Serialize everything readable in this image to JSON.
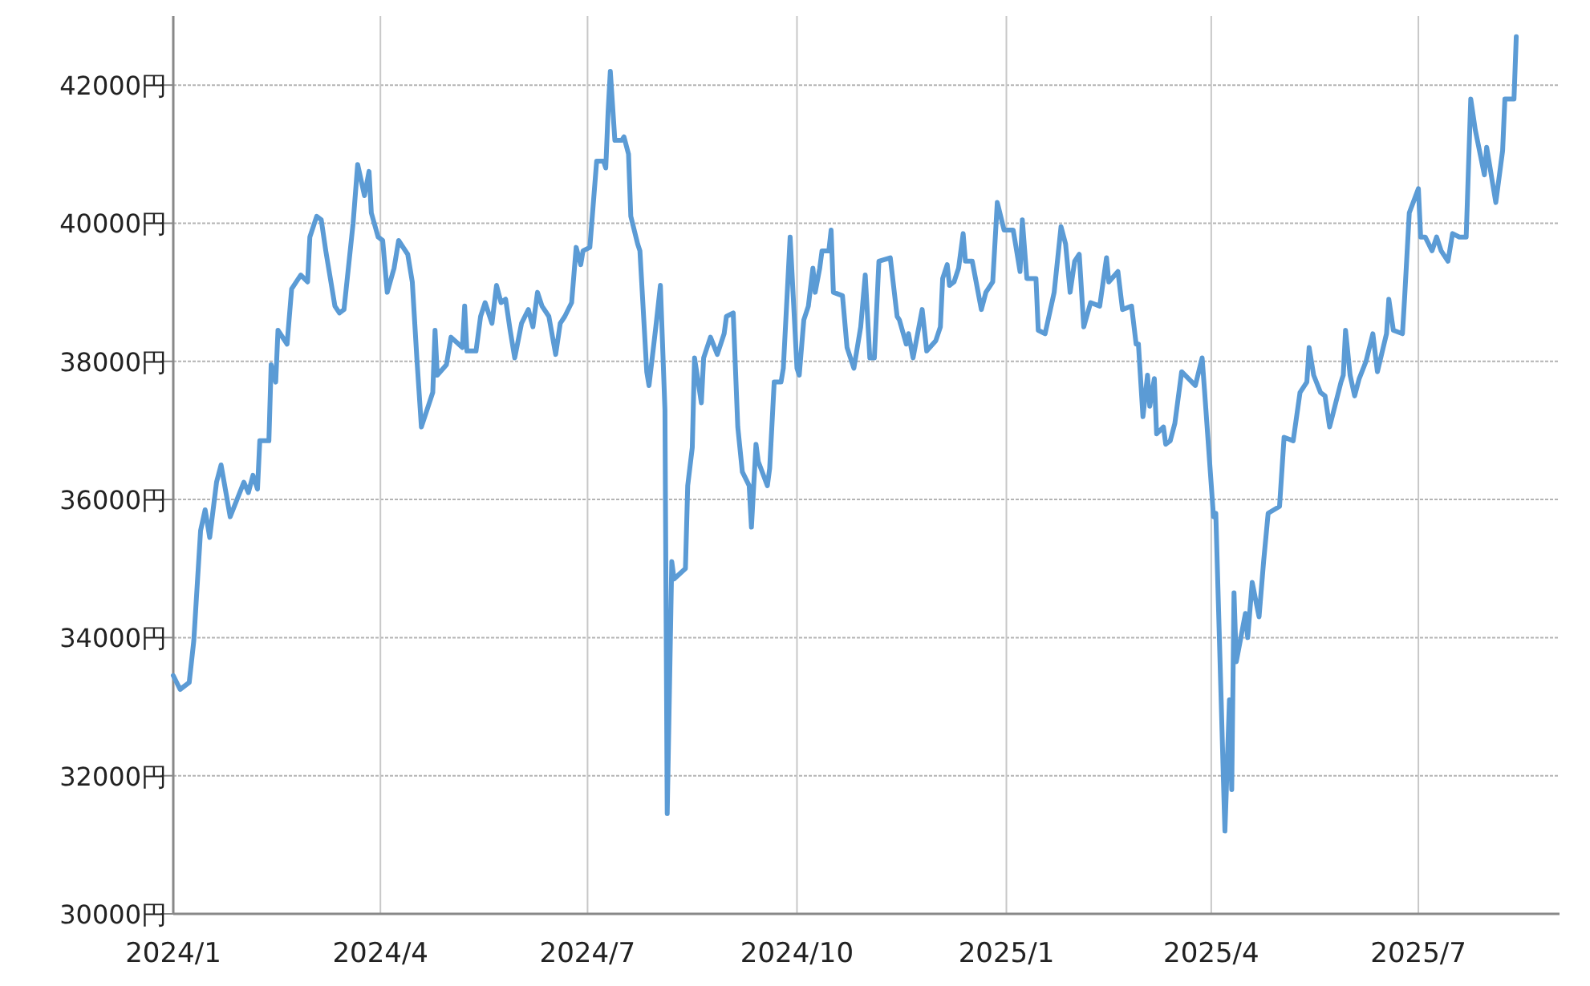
{
  "chart_data": {
    "type": "line",
    "grid": true,
    "xlim": [
      "2024-01-01",
      "2025-09-01"
    ],
    "xticks": [
      {
        "value": "2024-01-01",
        "label": "2024/1"
      },
      {
        "value": "2024-04-01",
        "label": "2024/4"
      },
      {
        "value": "2024-07-01",
        "label": "2024/7"
      },
      {
        "value": "2024-10-01",
        "label": "2024/10"
      },
      {
        "value": "2025-01-01",
        "label": "2025/1"
      },
      {
        "value": "2025-04-01",
        "label": "2025/4"
      },
      {
        "value": "2025-07-01",
        "label": "2025/7"
      }
    ],
    "ylim": [
      30000,
      43000
    ],
    "yticks": [
      {
        "value": 30000,
        "label": "30000円"
      },
      {
        "value": 32000,
        "label": "32000円"
      },
      {
        "value": 34000,
        "label": "34000円"
      },
      {
        "value": 36000,
        "label": "36000円"
      },
      {
        "value": 38000,
        "label": "38000円"
      },
      {
        "value": 40000,
        "label": "40000円"
      },
      {
        "value": 42000,
        "label": "42000円"
      }
    ],
    "x": [
      "2024-01-01",
      "2024-01-04",
      "2024-01-08",
      "2024-01-10",
      "2024-01-13",
      "2024-01-15",
      "2024-01-17",
      "2024-01-20",
      "2024-01-22",
      "2024-01-26",
      "2024-02-01",
      "2024-02-03",
      "2024-02-05",
      "2024-02-07",
      "2024-02-08",
      "2024-02-12",
      "2024-02-13",
      "2024-02-15",
      "2024-02-16",
      "2024-02-20",
      "2024-02-22",
      "2024-02-26",
      "2024-02-29",
      "2024-03-01",
      "2024-03-04",
      "2024-03-06",
      "2024-03-08",
      "2024-03-12",
      "2024-03-14",
      "2024-03-16",
      "2024-03-20",
      "2024-03-22",
      "2024-03-25",
      "2024-03-27",
      "2024-03-28",
      "2024-03-31",
      "2024-04-02",
      "2024-04-04",
      "2024-04-07",
      "2024-04-09",
      "2024-04-13",
      "2024-04-15",
      "2024-04-17",
      "2024-04-19",
      "2024-04-24",
      "2024-04-25",
      "2024-04-26",
      "2024-04-30",
      "2024-05-02",
      "2024-05-07",
      "2024-05-08",
      "2024-05-09",
      "2024-05-13",
      "2024-05-15",
      "2024-05-17",
      "2024-05-20",
      "2024-05-22",
      "2024-05-24",
      "2024-05-26",
      "2024-05-28",
      "2024-05-30",
      "2024-06-02",
      "2024-06-05",
      "2024-06-07",
      "2024-06-09",
      "2024-06-11",
      "2024-06-14",
      "2024-06-17",
      "2024-06-19",
      "2024-06-21",
      "2024-06-24",
      "2024-06-26",
      "2024-06-28",
      "2024-06-29",
      "2024-07-02",
      "2024-07-05",
      "2024-07-08",
      "2024-07-09",
      "2024-07-10",
      "2024-07-11",
      "2024-07-13",
      "2024-07-16",
      "2024-07-17",
      "2024-07-19",
      "2024-07-20",
      "2024-07-23",
      "2024-07-24",
      "2024-07-27",
      "2024-07-28",
      "2024-07-31",
      "2024-08-02",
      "2024-08-04",
      "2024-08-05",
      "2024-08-07",
      "2024-08-08",
      "2024-08-13",
      "2024-08-14",
      "2024-08-16",
      "2024-08-17",
      "2024-08-20",
      "2024-08-21",
      "2024-08-24",
      "2024-08-27",
      "2024-08-30",
      "2024-08-31",
      "2024-09-03",
      "2024-09-05",
      "2024-09-07",
      "2024-09-10",
      "2024-09-11",
      "2024-09-13",
      "2024-09-14",
      "2024-09-18",
      "2024-09-19",
      "2024-09-21",
      "2024-09-24",
      "2024-09-25",
      "2024-09-28",
      "2024-10-01",
      "2024-10-02",
      "2024-10-04",
      "2024-10-06",
      "2024-10-08",
      "2024-10-09",
      "2024-10-11",
      "2024-10-12",
      "2024-10-15",
      "2024-10-16",
      "2024-10-17",
      "2024-10-21",
      "2024-10-23",
      "2024-10-26",
      "2024-10-29",
      "2024-10-31",
      "2024-11-02",
      "2024-11-04",
      "2024-11-06",
      "2024-11-11",
      "2024-11-14",
      "2024-11-15",
      "2024-11-18",
      "2024-11-19",
      "2024-11-21",
      "2024-11-25",
      "2024-11-27",
      "2024-12-01",
      "2024-12-03",
      "2024-12-04",
      "2024-12-06",
      "2024-12-07",
      "2024-12-09",
      "2024-12-11",
      "2024-12-13",
      "2024-12-14",
      "2024-12-17",
      "2024-12-21",
      "2024-12-23",
      "2024-12-26",
      "2024-12-28",
      "2024-12-31",
      "2025-01-04",
      "2025-01-07",
      "2025-01-08",
      "2025-01-10",
      "2025-01-14",
      "2025-01-15",
      "2025-01-18",
      "2025-01-22",
      "2025-01-25",
      "2025-01-27",
      "2025-01-29",
      "2025-01-31",
      "2025-02-02",
      "2025-02-04",
      "2025-02-07",
      "2025-02-11",
      "2025-02-14",
      "2025-02-15",
      "2025-02-19",
      "2025-02-21",
      "2025-02-25",
      "2025-02-27",
      "2025-02-28",
      "2025-03-02",
      "2025-03-04",
      "2025-03-05",
      "2025-03-07",
      "2025-03-08",
      "2025-03-11",
      "2025-03-12",
      "2025-03-14",
      "2025-03-16",
      "2025-03-19",
      "2025-03-25",
      "2025-03-28",
      "2025-03-29",
      "2025-04-02",
      "2025-04-03",
      "2025-04-07",
      "2025-04-09",
      "2025-04-10",
      "2025-04-11",
      "2025-04-12",
      "2025-04-14",
      "2025-04-16",
      "2025-04-17",
      "2025-04-19",
      "2025-04-22",
      "2025-04-24",
      "2025-04-26",
      "2025-05-01",
      "2025-05-03",
      "2025-05-07",
      "2025-05-10",
      "2025-05-13",
      "2025-05-14",
      "2025-05-16",
      "2025-05-19",
      "2025-05-21",
      "2025-05-23",
      "2025-05-28",
      "2025-05-29",
      "2025-05-30",
      "2025-06-01",
      "2025-06-03",
      "2025-06-05",
      "2025-06-08",
      "2025-06-11",
      "2025-06-13",
      "2025-06-17",
      "2025-06-18",
      "2025-06-20",
      "2025-06-24",
      "2025-06-25",
      "2025-06-27",
      "2025-07-01",
      "2025-07-02",
      "2025-07-04",
      "2025-07-07",
      "2025-07-09",
      "2025-07-11",
      "2025-07-14",
      "2025-07-16",
      "2025-07-19",
      "2025-07-22",
      "2025-07-24",
      "2025-07-26",
      "2025-07-30",
      "2025-07-31",
      "2025-08-04",
      "2025-08-07",
      "2025-08-08",
      "2025-08-12",
      "2025-08-13"
    ],
    "series": [
      {
        "color": "#5b9bd5",
        "values": [
          33450,
          33250,
          33350,
          33950,
          35550,
          35850,
          35450,
          36250,
          36500,
          35750,
          36250,
          36100,
          36350,
          36150,
          36850,
          36850,
          37950,
          37700,
          38450,
          38250,
          39050,
          39250,
          39150,
          39800,
          40100,
          40050,
          39600,
          38800,
          38700,
          38750,
          40000,
          40850,
          40400,
          40750,
          40150,
          39800,
          39750,
          39000,
          39350,
          39750,
          39550,
          39150,
          38050,
          37050,
          37550,
          38450,
          37800,
          37950,
          38350,
          38200,
          38800,
          38150,
          38150,
          38650,
          38850,
          38550,
          39100,
          38850,
          38900,
          38450,
          38050,
          38550,
          38750,
          38500,
          39000,
          38800,
          38650,
          38100,
          38550,
          38650,
          38850,
          39650,
          39400,
          39600,
          39650,
          40900,
          40900,
          40800,
          41600,
          42200,
          41200,
          41200,
          41250,
          41000,
          40100,
          39700,
          39600,
          37850,
          37650,
          38500,
          39100,
          37300,
          31450,
          35100,
          34850,
          35000,
          36200,
          36750,
          38050,
          37400,
          38050,
          38350,
          38100,
          38400,
          38650,
          38700,
          37050,
          36400,
          36200,
          35600,
          36800,
          36550,
          36200,
          36450,
          37700,
          37700,
          37900,
          39800,
          37900,
          37800,
          38600,
          38800,
          39350,
          39000,
          39350,
          39600,
          39600,
          39900,
          39000,
          38950,
          38200,
          37900,
          38500,
          39250,
          38050,
          38050,
          39450,
          39500,
          38650,
          38600,
          38250,
          38400,
          38050,
          38750,
          38150,
          38300,
          38500,
          39200,
          39400,
          39100,
          39150,
          39350,
          39850,
          39450,
          39450,
          38750,
          39000,
          39150,
          40300,
          39900,
          39900,
          39300,
          40050,
          39200,
          39200,
          38450,
          38400,
          39000,
          39950,
          39700,
          39000,
          39450,
          39550,
          38500,
          38850,
          38800,
          39500,
          39150,
          39300,
          38750,
          38800,
          38250,
          38250,
          37200,
          37800,
          37350,
          37750,
          36950,
          37050,
          36800,
          36850,
          37100,
          37850,
          37650,
          38050,
          37600,
          35750,
          35800,
          31200,
          33100,
          31800,
          34650,
          33650,
          34000,
          34350,
          34000,
          34800,
          34300,
          35100,
          35800,
          35900,
          36900,
          36850,
          37550,
          37700,
          38200,
          37800,
          37550,
          37500,
          37050,
          37700,
          37800,
          38450,
          37800,
          37500,
          37750,
          38000,
          38400,
          37850,
          38400,
          38900,
          38450,
          38400,
          38950,
          40150,
          40500,
          39800,
          39800,
          39600,
          39800,
          39600,
          39450,
          39850,
          39800,
          39800,
          41800,
          41350,
          40700,
          41100,
          40300,
          41050,
          41800,
          41800,
          42700
        ]
      }
    ]
  }
}
